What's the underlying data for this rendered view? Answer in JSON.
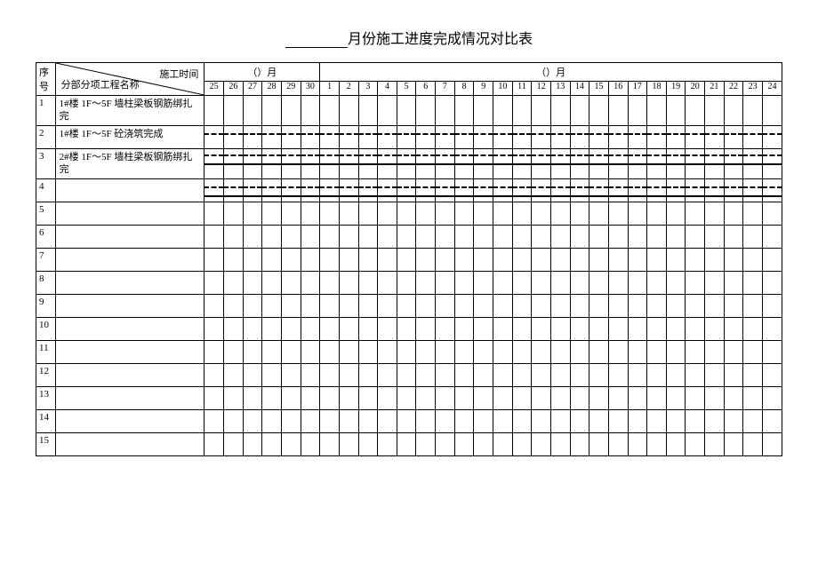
{
  "title_suffix": "月份施工进度完成情况对比表",
  "header": {
    "seq": "序号",
    "diag_top": "施工时间",
    "diag_bot": "分部分项工程名称",
    "month1_label": "（）月",
    "month2_label": "（）月",
    "days_m1": [
      "25",
      "26",
      "27",
      "28",
      "29",
      "30"
    ],
    "days_m2": [
      "1",
      "2",
      "3",
      "4",
      "5",
      "6",
      "7",
      "8",
      "9",
      "10",
      "11",
      "12",
      "13",
      "14",
      "15",
      "16",
      "17",
      "18",
      "19",
      "20",
      "21",
      "22",
      "23",
      "24"
    ]
  },
  "rows": [
    {
      "seq": "1",
      "name": "1#楼 1F～5F 墙柱梁板钢筋绑扎完",
      "dash": null,
      "solid": null,
      "tall": true
    },
    {
      "seq": "2",
      "name": "1#楼 1F～5F 砼浇筑完成",
      "dash": 8,
      "solid": null,
      "tall": false
    },
    {
      "seq": "3",
      "name": "2#楼 1F～5F 墙柱梁板钢筋绑扎完",
      "dash": 6,
      "solid": 16,
      "tall": true
    },
    {
      "seq": "4",
      "name": "",
      "dash": 8,
      "solid": 18,
      "tall": false
    },
    {
      "seq": "5",
      "name": "",
      "dash": null,
      "solid": null,
      "tall": false
    },
    {
      "seq": "6",
      "name": "",
      "dash": null,
      "solid": null,
      "tall": false
    },
    {
      "seq": "7",
      "name": "",
      "dash": null,
      "solid": null,
      "tall": false
    },
    {
      "seq": "8",
      "name": "",
      "dash": null,
      "solid": null,
      "tall": false
    },
    {
      "seq": "9",
      "name": "",
      "dash": null,
      "solid": null,
      "tall": false
    },
    {
      "seq": "10",
      "name": "",
      "dash": null,
      "solid": null,
      "tall": false
    },
    {
      "seq": "11",
      "name": "",
      "dash": null,
      "solid": null,
      "tall": false
    },
    {
      "seq": "12",
      "name": "",
      "dash": null,
      "solid": null,
      "tall": false
    },
    {
      "seq": "13",
      "name": "",
      "dash": null,
      "solid": null,
      "tall": false
    },
    {
      "seq": "14",
      "name": "",
      "dash": null,
      "solid": null,
      "tall": false
    },
    {
      "seq": "15",
      "name": "",
      "dash": null,
      "solid": null,
      "tall": false
    }
  ],
  "style": {
    "total_days": 30,
    "bg": "#ffffff",
    "line": "#000000"
  }
}
